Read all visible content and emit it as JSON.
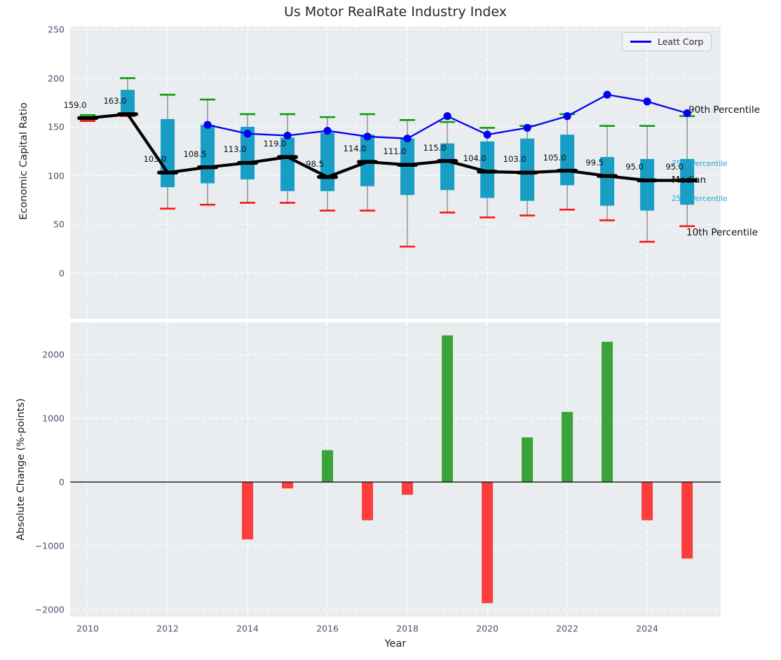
{
  "title": "Us Motor RealRate Industry Index",
  "legend": {
    "label": "Leatt Corp"
  },
  "annotations": {
    "p90": "90th Percentile",
    "p75": "75th Percentile",
    "median": "Median",
    "p25": "25th Percentile",
    "p10": "10th Percentile"
  },
  "colors": {
    "box_fill": "#189dc5",
    "whisker": "#7c7c7c",
    "cap_high_green": "#0a9e0a",
    "cap_low_red": "#ff1414",
    "median_black": "#000000",
    "leatt_blue": "#0202f0",
    "bar_positive_green": "#3aa33a",
    "bar_negative_red": "#fb3d3d",
    "plot_background": "#e9edf0",
    "gridline_white": "#ffffff",
    "tick_label": "#44546a",
    "percentile_label_cyan": "#27a9d4",
    "legend_background": "#f2f3f7",
    "legend_border": "#c9c9d0"
  },
  "chart_data": [
    {
      "type": "boxplot+line",
      "title": "Us Motor RealRate Industry Index",
      "ylabel": "Economic Capital Ratio",
      "ylim": [
        -47,
        253
      ],
      "ytick_values": [
        0,
        50,
        100,
        150,
        200,
        250
      ],
      "ytick_labels": [
        "0",
        "50",
        "100",
        "150",
        "200",
        "250"
      ],
      "grid": true,
      "legend_position": "upper right",
      "legend_entries": [
        {
          "name": "Leatt Corp",
          "color": "#0202f0"
        }
      ],
      "years": [
        2010,
        2011,
        2012,
        2013,
        2014,
        2015,
        2016,
        2017,
        2018,
        2019,
        2020,
        2021,
        2022,
        2023,
        2024,
        2025
      ],
      "series": {
        "p90": [
          162,
          200,
          183,
          178,
          163,
          163,
          160,
          163,
          157,
          155,
          149,
          151,
          163,
          151,
          151,
          161
        ],
        "p75": [
          160.5,
          188,
          158,
          152,
          150,
          139,
          144,
          142,
          138,
          133,
          135,
          138,
          142,
          119,
          117,
          117
        ],
        "median": [
          159,
          163,
          103,
          108.5,
          113,
          119,
          98.5,
          114,
          111,
          115,
          104,
          103,
          105,
          99.5,
          95,
          95
        ],
        "p25": [
          157.5,
          164,
          88,
          92,
          96,
          84,
          84,
          89,
          80,
          85,
          77,
          74,
          90,
          69,
          64,
          70
        ],
        "p10": [
          156,
          161,
          66,
          70,
          72,
          72,
          64,
          64,
          27,
          62,
          57,
          59,
          65,
          54,
          32,
          48
        ],
        "leatt_corp": {
          "years": [
            2013,
            2014,
            2015,
            2016,
            2017,
            2018,
            2019,
            2020,
            2021,
            2022,
            2023,
            2024,
            2025
          ],
          "values": [
            152,
            143,
            141,
            146,
            140,
            138,
            161,
            142,
            149,
            161,
            183,
            176,
            164
          ]
        }
      },
      "median_labels": [
        "159.0",
        "163.0",
        "103.0",
        "108.5",
        "113.0",
        "119.0",
        "98.5",
        "114.0",
        "111.0",
        "115.0",
        "104.0",
        "103.0",
        "105.0",
        "99.5",
        "95.0",
        "95.0"
      ]
    },
    {
      "type": "bar",
      "ylabel": "Absolute Change (%-points)",
      "xlabel": "Year",
      "ylim": [
        -2110,
        2505
      ],
      "ytick_values": [
        -2000,
        -1000,
        0,
        1000,
        2000
      ],
      "ytick_labels": [
        "−2000",
        "−1000",
        "0",
        "1000",
        "2000"
      ],
      "xtick_values": [
        2010,
        2012,
        2014,
        2016,
        2018,
        2020,
        2022,
        2024
      ],
      "xtick_labels": [
        "2010",
        "2012",
        "2014",
        "2016",
        "2018",
        "2020",
        "2022",
        "2024"
      ],
      "grid": true,
      "years": [
        2010,
        2011,
        2012,
        2013,
        2014,
        2015,
        2016,
        2017,
        2018,
        2019,
        2020,
        2021,
        2022,
        2023,
        2024,
        2025
      ],
      "values": [
        0,
        0,
        0,
        0,
        -900,
        -100,
        500,
        -600,
        -200,
        2300,
        -1900,
        700,
        1100,
        2200,
        -600,
        -1200
      ]
    }
  ]
}
